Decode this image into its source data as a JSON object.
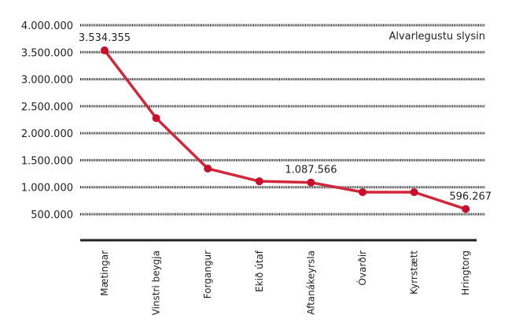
{
  "chart_data": {
    "type": "line",
    "title": "Alvarlegustu slysin",
    "xlabel": "",
    "ylabel": "",
    "categories": [
      "Mætingar",
      "Vinstri beygja",
      "Forgangur",
      "Ekið útaf",
      "Aftanákeyrsla",
      "Óvarðir",
      "Kyrrstætt",
      "Hringtorg"
    ],
    "series": [
      {
        "name": "Alvarlegustu slysin",
        "color": "#d0283a",
        "values": [
          3534355,
          2280000,
          1345000,
          1110000,
          1087566,
          908000,
          908000,
          596267
        ]
      }
    ],
    "data_labels": [
      {
        "index": 0,
        "text": "3.534.355"
      },
      {
        "index": 4,
        "text": "1.087.566"
      },
      {
        "index": 7,
        "text": "596.267"
      }
    ],
    "yticks": [
      {
        "value": 500000,
        "label": "500.000"
      },
      {
        "value": 1000000,
        "label": "1.000.000"
      },
      {
        "value": 1500000,
        "label": "1.500.000"
      },
      {
        "value": 2000000,
        "label": "2.000.000"
      },
      {
        "value": 2500000,
        "label": "2.500.000"
      },
      {
        "value": 3000000,
        "label": "3.000.000"
      },
      {
        "value": 3500000,
        "label": "3.500.000"
      },
      {
        "value": 4000000,
        "label": "4.000.000"
      }
    ],
    "ylim": [
      500000,
      4000000
    ],
    "grid": true,
    "legend": "none",
    "title_placement": "top-right"
  }
}
